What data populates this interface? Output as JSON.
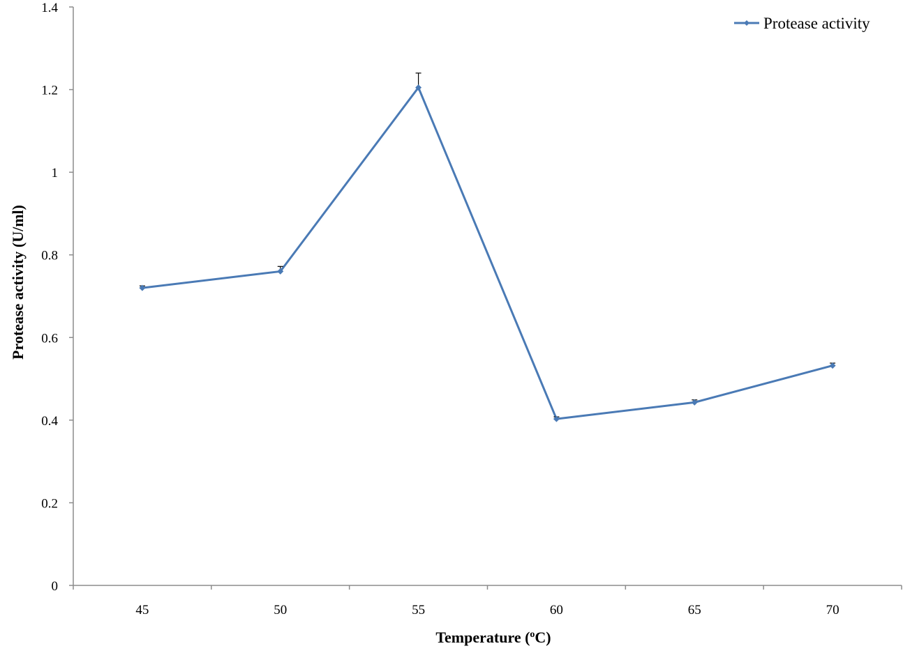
{
  "chart_data": {
    "type": "line",
    "title": "",
    "xlabel": "Temperature (",
    "xlabel_unit_superscript": "o",
    "xlabel_unit_end": "C)",
    "ylabel": "Protease activity (U/ml)",
    "categories": [
      "45",
      "50",
      "55",
      "60",
      "65",
      "70"
    ],
    "series": [
      {
        "name": "Protease activity",
        "values": [
          0.72,
          0.76,
          1.205,
          0.403,
          0.443,
          0.532
        ],
        "error": [
          0.005,
          0.012,
          0.035,
          0.005,
          0.006,
          0.006
        ],
        "color": "#4a7ab5"
      }
    ],
    "ylim": [
      0,
      1.4
    ],
    "yticks": [
      "0",
      "0.2",
      "0.4",
      "0.6",
      "0.8",
      "1",
      "1.2",
      "1.4"
    ],
    "grid": false,
    "legend_position": "top-right"
  }
}
